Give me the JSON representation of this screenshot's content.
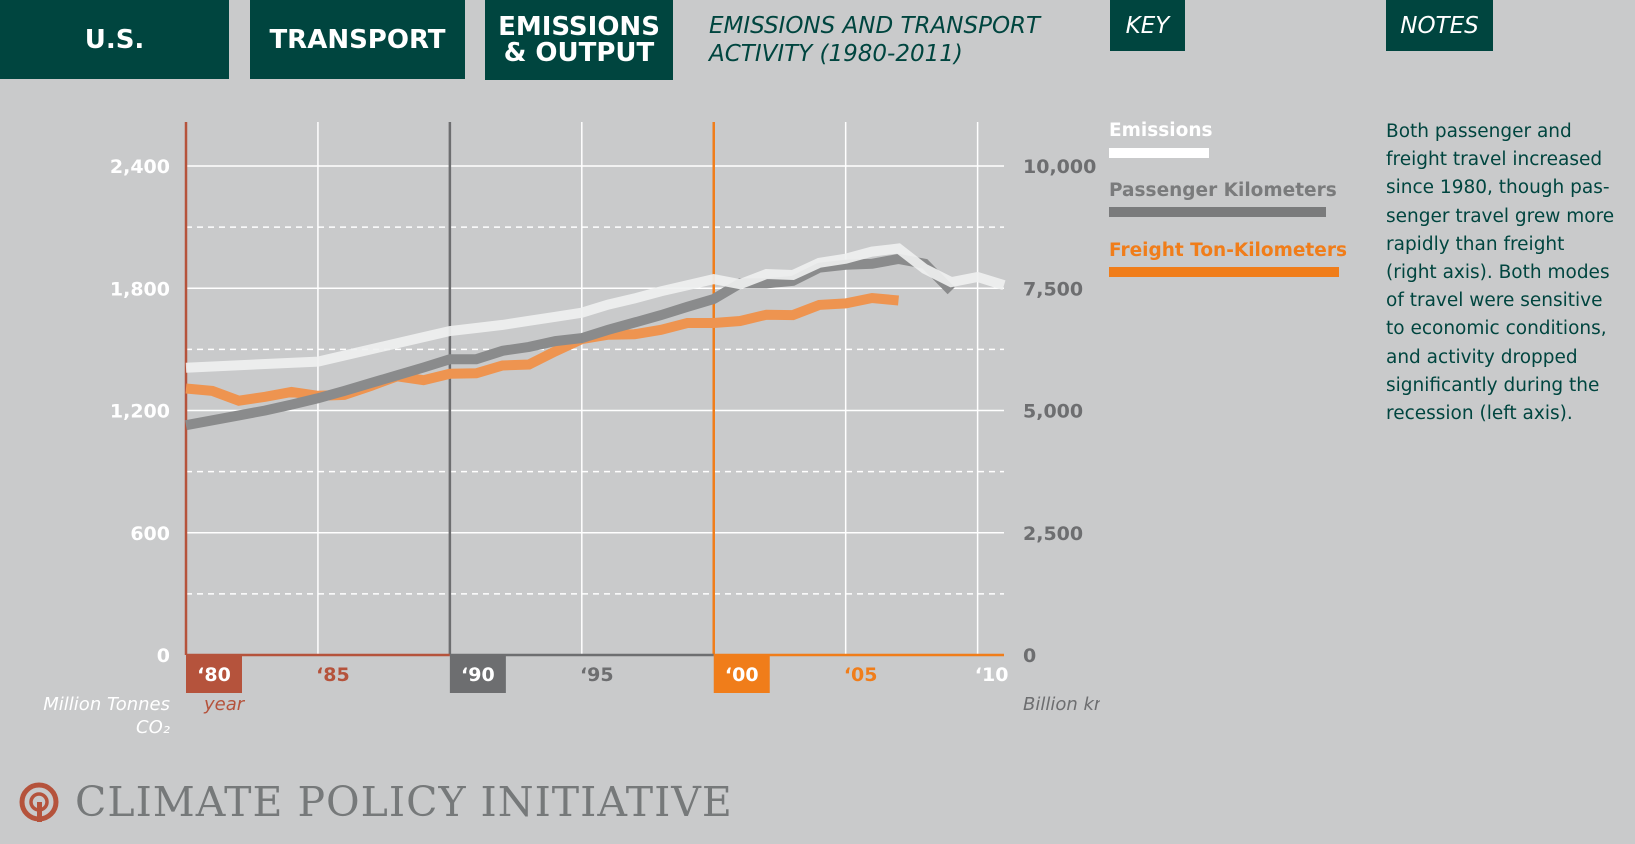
{
  "tabs": {
    "us": "U.S.",
    "transport": "TRANSPORT",
    "emissions_line1": "EMISSIONS",
    "emissions_line2": "& OUTPUT"
  },
  "chart_title_line1": "EMISSIONS AND TRANSPORT",
  "chart_title_line2": "ACTIVITY (1980-2011)",
  "key_tab": "KEY",
  "notes_tab": "NOTES",
  "key_items": [
    {
      "label": "Emissions",
      "color": "#ffffff"
    },
    {
      "label": "Passenger Kilometers",
      "color": "#7a7b7c"
    },
    {
      "label": "Freight Ton-Kilometers",
      "color": "#f07d1a"
    }
  ],
  "notes_text": [
    "Both passenger and",
    "freight travel increased",
    "since 1980, though pas-",
    "senger travel grew more",
    "rapidly than freight",
    "(right axis). Both modes",
    "of travel were sensitive",
    "to economic conditions,",
    "and activity dropped",
    "significantly during the",
    "recession (left axis)."
  ],
  "logo_text": "CLIMATE POLICY INITIATIVE",
  "colors": {
    "tab_bg": "#00453f",
    "background": "#c9cacb",
    "decade_1980": "#b5533c",
    "decade_1990": "#6d6e70",
    "decade_2000": "#f07d1a",
    "left_axis_text": "#ffffff",
    "right_axis_text": "#6d6e70"
  },
  "chart_data": {
    "type": "line",
    "xlim": [
      1980,
      2011
    ],
    "ylim_left": [
      0,
      2400
    ],
    "ylim_right": [
      0,
      10000
    ],
    "left_ticks": [
      0,
      600,
      1200,
      1800,
      2400
    ],
    "left_tick_labels": [
      "0",
      "600",
      "1,200",
      "1,800",
      "2,400"
    ],
    "right_ticks": [
      0,
      2500,
      5000,
      7500,
      10000
    ],
    "right_tick_labels": [
      "0",
      "2,500",
      "5,000",
      "7,500",
      "10,000"
    ],
    "x_ticks": [
      1980,
      1985,
      1990,
      1995,
      2000,
      2005,
      2010
    ],
    "x_tick_labels": [
      "‘80",
      "‘85",
      "‘90",
      "‘95",
      "‘00",
      "‘05",
      "‘10"
    ],
    "left_axis_label_line1": "Million Tonnes",
    "left_axis_label_line2": "CO₂",
    "x_axis_label": "year",
    "right_axis_label": "Billion km",
    "series": [
      {
        "name": "Emissions",
        "axis": "left",
        "color": "#f0f1f1",
        "x": [
          1980,
          1985,
          1986,
          1987,
          1988,
          1989,
          1990,
          1991,
          1992,
          1993,
          1994,
          1995,
          1996,
          1997,
          1998,
          1999,
          2000,
          2001,
          2002,
          2003,
          2004,
          2005,
          2006,
          2007,
          2008,
          2009,
          2010,
          2011
        ],
        "values": [
          1410,
          1440,
          1470,
          1500,
          1530,
          1560,
          1590,
          1605,
          1620,
          1640,
          1660,
          1680,
          1720,
          1750,
          1785,
          1815,
          1845,
          1820,
          1870,
          1865,
          1925,
          1945,
          1980,
          1995,
          1895,
          1830,
          1855,
          1815
        ]
      },
      {
        "name": "Passenger Kilometers",
        "axis": "right",
        "color": "#8a8b8c",
        "x": [
          1980,
          1981,
          1982,
          1983,
          1984,
          1985,
          1986,
          1987,
          1988,
          1989,
          1990,
          1991,
          1992,
          1993,
          1994,
          1995,
          1996,
          1997,
          1998,
          1999,
          2000,
          2001,
          2002,
          2003,
          2004,
          2005,
          2006,
          2007,
          2008,
          2009
        ],
        "values": [
          4700,
          4800,
          4900,
          5000,
          5120,
          5250,
          5400,
          5560,
          5720,
          5880,
          6050,
          6050,
          6220,
          6300,
          6420,
          6480,
          6650,
          6800,
          6950,
          7120,
          7280,
          7600,
          7600,
          7650,
          7920,
          7980,
          8000,
          8100,
          8000,
          7450
        ]
      },
      {
        "name": "Freight Ton-Kilometers",
        "axis": "right",
        "color": "#ee9450",
        "x": [
          1980,
          1981,
          1982,
          1983,
          1984,
          1985,
          1986,
          1987,
          1988,
          1989,
          1990,
          1991,
          1992,
          1993,
          1994,
          1995,
          1996,
          1997,
          1998,
          1999,
          2000,
          2001,
          2002,
          2003,
          2004,
          2005,
          2006,
          2007
        ],
        "values": [
          5450,
          5400,
          5200,
          5280,
          5380,
          5300,
          5320,
          5500,
          5700,
          5620,
          5750,
          5760,
          5920,
          5940,
          6210,
          6460,
          6550,
          6560,
          6650,
          6790,
          6790,
          6830,
          6960,
          6950,
          7160,
          7190,
          7300,
          7250
        ]
      }
    ]
  }
}
